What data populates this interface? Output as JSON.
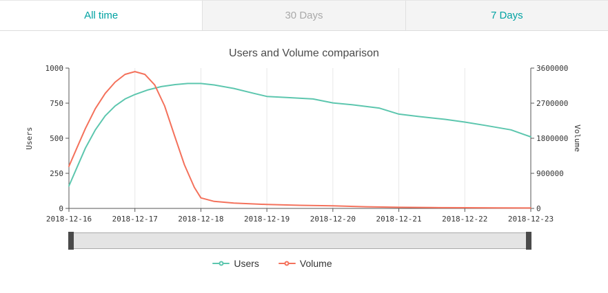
{
  "tabs": {
    "items": [
      {
        "label": "All time",
        "active": true,
        "color": "#00a2a2"
      },
      {
        "label": "30 Days",
        "active": false,
        "color": "#a9a9a9"
      },
      {
        "label": "7 Days",
        "active": false,
        "color": "#00a2a2"
      }
    ]
  },
  "chart_data": {
    "type": "line",
    "title": "Users and Volume comparison",
    "x_labels": [
      "2018-12-16",
      "2018-12-17",
      "2018-12-18",
      "2018-12-19",
      "2018-12-20",
      "2018-12-21",
      "2018-12-22",
      "2018-12-23"
    ],
    "left_axis": {
      "label": "Users",
      "ticks": [
        0,
        250,
        500,
        750,
        1000
      ],
      "range": [
        0,
        1000
      ]
    },
    "right_axis": {
      "label": "Volume",
      "ticks": [
        0,
        900000,
        1800000,
        2700000,
        3600000
      ],
      "range": [
        0,
        3600000
      ]
    },
    "grid": true,
    "legend_position": "bottom",
    "series": [
      {
        "name": "Users",
        "axis": "left",
        "color": "#5cc6ae",
        "x": [
          0,
          0.12,
          0.25,
          0.4,
          0.55,
          0.7,
          0.85,
          1.0,
          1.2,
          1.4,
          1.6,
          1.8,
          2.0,
          2.2,
          2.5,
          2.8,
          3.0,
          3.3,
          3.7,
          4.0,
          4.3,
          4.7,
          5.0,
          5.3,
          5.7,
          6.0,
          6.3,
          6.7,
          7.0
        ],
        "values": [
          160,
          290,
          430,
          560,
          660,
          730,
          780,
          812,
          845,
          868,
          882,
          890,
          890,
          880,
          855,
          820,
          798,
          790,
          780,
          752,
          738,
          715,
          672,
          655,
          635,
          615,
          592,
          560,
          510
        ]
      },
      {
        "name": "Volume",
        "axis": "right",
        "color": "#f4715b",
        "x": [
          0,
          0.12,
          0.25,
          0.4,
          0.55,
          0.7,
          0.85,
          1.0,
          1.15,
          1.3,
          1.45,
          1.6,
          1.75,
          1.9,
          2.0,
          2.2,
          2.5,
          3.0,
          3.5,
          4.0,
          4.5,
          5.0,
          5.5,
          6.0,
          6.5,
          7.0
        ],
        "values": [
          1080000,
          1550000,
          2050000,
          2560000,
          2950000,
          3240000,
          3440000,
          3510000,
          3440000,
          3170000,
          2630000,
          1870000,
          1120000,
          540000,
          270000,
          180000,
          137000,
          100000,
          79000,
          65000,
          43000,
          29000,
          22000,
          18000,
          14000,
          11000
        ]
      }
    ]
  }
}
